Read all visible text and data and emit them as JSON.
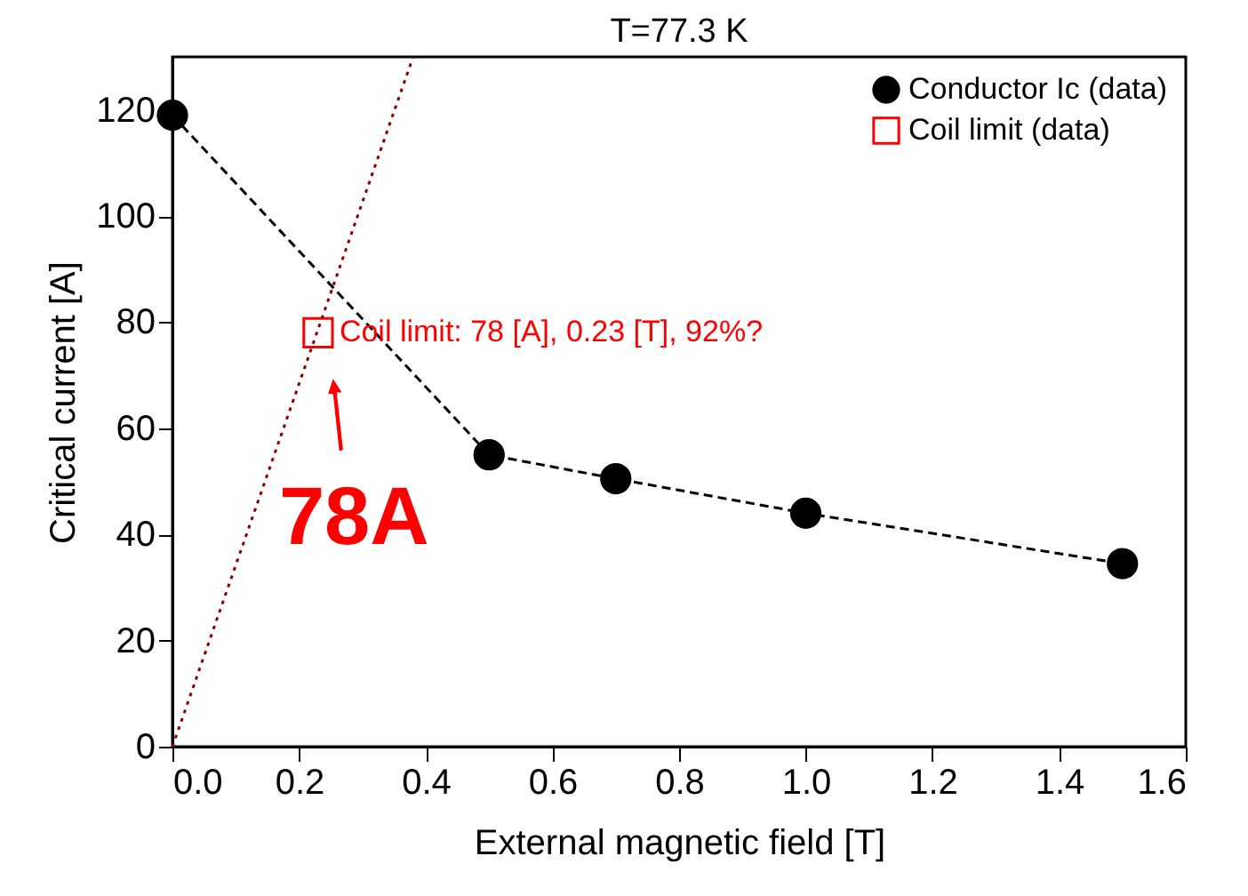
{
  "chart_data": {
    "type": "line",
    "title": "T=77.3 K",
    "xlabel": "External magnetic field [T]",
    "ylabel": "Critical current [A]",
    "xlim": [
      0,
      1.6
    ],
    "xticks": [
      {
        "value": 0,
        "label": "0.0"
      },
      0.2,
      0.4,
      0.6,
      0.8,
      {
        "value": 1,
        "label": "1.0"
      },
      1.2,
      1.4,
      1.6
    ],
    "ylim": [
      0,
      130
    ],
    "yticks": [
      0,
      20,
      40,
      60,
      80,
      100,
      120
    ],
    "grid": false,
    "legend": "top right",
    "series": [
      {
        "name": "Conductor Ic (data)",
        "type": "line",
        "color": "#000000",
        "marker": "circle",
        "line_style": "dashed",
        "x": [
          0,
          0.5,
          0.7,
          1.0,
          1.5
        ],
        "values": [
          119,
          55,
          50.5,
          44,
          34.5
        ]
      },
      {
        "name": "Coil limit (data)",
        "type": "scatter",
        "color": "#ff0000",
        "marker": "square",
        "x": [
          0.23
        ],
        "values": [
          78
        ]
      },
      {
        "type": "line",
        "color": "#8b0000",
        "marker": "none",
        "line_style": "dotted",
        "x": [
          0,
          0.38
        ],
        "values": [
          0,
          130
        ]
      }
    ],
    "annotations": [
      {
        "text": "Coil limit: 78 [A], 0.23 [T], 92%?",
        "x": 0.23,
        "y": 78
      },
      {
        "text": "78A",
        "x": 0.23,
        "y": 78
      }
    ]
  }
}
